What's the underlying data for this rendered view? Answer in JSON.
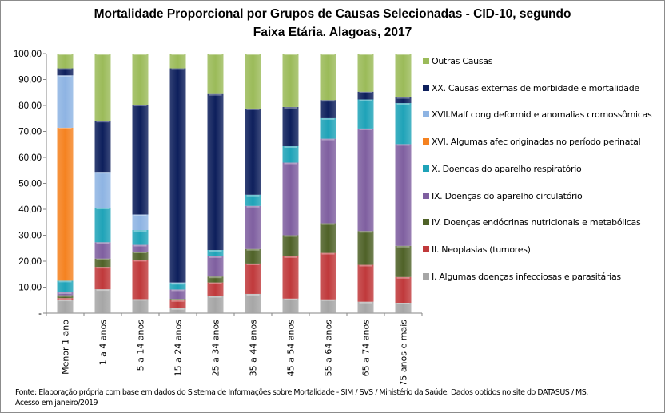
{
  "chart_data": {
    "type": "bar",
    "stacked": true,
    "title": "Mortalidade Proporcional por Grupos de Causas Selecionadas - CID-10, segundo Faixa Etária. Alagoas, 2017",
    "title_lines": [
      "Mortalidade Proporcional por Grupos de Causas Selecionadas - CID-10, segundo",
      "Faixa Etária. Alagoas, 2017"
    ],
    "xlabel": "",
    "ylabel": "",
    "ylim": [
      0,
      100
    ],
    "yticks": [
      "-",
      "10,00",
      "20,00",
      "30,00",
      "40,00",
      "50,00",
      "60,00",
      "70,00",
      "80,00",
      "90,00",
      "100,00"
    ],
    "grid": false,
    "legend_position": "right",
    "categories": [
      "Menor 1 ano",
      "1 a 4 anos",
      "5 a 14 anos",
      "15 a 24 anos",
      "25 a 34 anos",
      "35 a 44 anos",
      "45 a 54 anos",
      "55 a 64 anos",
      "65 a 74 anos",
      "75 anos e mais"
    ],
    "series": [
      {
        "name": "I.   Algumas doenças infecciosas e parasitárias",
        "color": "#a6a6a6",
        "values": [
          5.2,
          9.2,
          5.4,
          1.9,
          6.6,
          7.4,
          5.6,
          5.3,
          4.4,
          4.0
        ]
      },
      {
        "name": "II.  Neoplasias (tumores)",
        "color": "#c0393b",
        "values": [
          0.6,
          8.6,
          15.1,
          3.1,
          5.2,
          11.7,
          16.3,
          17.9,
          14.2,
          9.9
        ]
      },
      {
        "name": "IV.  Doenças endócrinas nutricionais e metabólicas",
        "color": "#4f6228",
        "values": [
          1.1,
          3.2,
          3.2,
          0.5,
          2.3,
          5.6,
          8.1,
          11.4,
          13.0,
          12.0
        ]
      },
      {
        "name": "IX.  Doenças do aparelho circulatório",
        "color": "#7f5fa0",
        "values": [
          1.1,
          6.3,
          2.6,
          3.6,
          7.8,
          16.6,
          28.0,
          32.6,
          39.5,
          39.2
        ]
      },
      {
        "name": "X.   Doenças do aparelho respiratório",
        "color": "#1fa3b8",
        "values": [
          4.5,
          13.3,
          5.7,
          2.5,
          2.4,
          4.3,
          6.3,
          7.9,
          11.2,
          15.8
        ]
      },
      {
        "name": "XVI. Algumas afec originadas no período perinatal",
        "color": "#f58220",
        "values": [
          58.9,
          0,
          0,
          0,
          0,
          0,
          0,
          0,
          0,
          0
        ]
      },
      {
        "name": "XVII.Malf cong deformid e anomalias cromossômicas",
        "color": "#8eb4e3",
        "values": [
          20.2,
          13.8,
          6.0,
          0.2,
          0,
          0,
          0,
          0,
          0,
          0
        ]
      },
      {
        "name": "XX.  Causas externas de morbidade e mortalidade",
        "color": "#0d1f5c",
        "values": [
          2.7,
          19.7,
          42.3,
          82.5,
          60.1,
          33.2,
          15.1,
          7.0,
          3.0,
          2.3
        ]
      },
      {
        "name": "Outras Causas",
        "color": "#9bbb59",
        "values": [
          5.7,
          25.9,
          19.7,
          5.7,
          15.6,
          21.2,
          20.6,
          17.9,
          14.7,
          16.8
        ]
      }
    ]
  },
  "source": {
    "line1": "Fonte: Elaboração própria com base em dados do  Sistema de Informações sobre Mortalidade - SIM / SVS / Ministério da Saúde. Dados obtidos no site do DATASUS / MS.",
    "line2": "Acesso em janeiro/2019"
  }
}
